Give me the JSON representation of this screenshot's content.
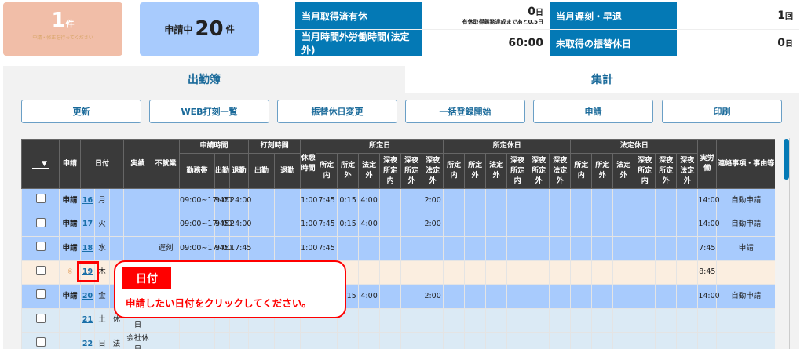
{
  "summary": {
    "todo_count": "1",
    "todo_unit": "件",
    "todo_note": "申請・修正を行ってください",
    "pending_prefix": "申請中",
    "pending_count": "20",
    "pending_unit": "件"
  },
  "info": [
    {
      "label": "当月取得済有休",
      "value": "0",
      "unit": "日",
      "note": "有休取得義務達成まであと0.5日"
    },
    {
      "label": "当月遅刻・早退",
      "value": "1",
      "unit": "回"
    },
    {
      "label": "当月時間外労働時間(法定外)",
      "value": "60:00",
      "unit": ""
    },
    {
      "label": "未取得の振替休日",
      "value": "0",
      "unit": "日"
    }
  ],
  "tabs": [
    {
      "label": "出勤簿",
      "active": true
    },
    {
      "label": "集計",
      "active": false
    }
  ],
  "buttons": [
    "更新",
    "WEB打刻一覧",
    "振替休日変更",
    "一括登録開始",
    "申請",
    "印刷"
  ],
  "table": {
    "select_label": "▼",
    "h": {
      "apply": "申請",
      "date": "日付",
      "result": "実績",
      "absence": "不就業",
      "req_time": "申請時間",
      "stamp_time": "打刻時間",
      "break": "休憩時間",
      "sched_day": "所定日",
      "sched_holiday": "所定休日",
      "legal_holiday": "法定休日",
      "actual": "実労働",
      "note": "連絡事項・事由等",
      "shift": "勤務帯",
      "in": "出勤",
      "out": "退勤",
      "stamp_in": "出勤",
      "stamp_out": "退勤"
    },
    "sub": [
      "所定内",
      "所定外",
      "法定外",
      "深夜所定内",
      "深夜所定外",
      "深夜法定外"
    ],
    "rows": [
      {
        "style": "blue",
        "cells": [
          "申請",
          "16",
          "月",
          "",
          "",
          "",
          "09:00~17:45",
          "9:00",
          "24:00",
          "",
          "",
          "1:00",
          "7:45",
          "0:15",
          "4:00",
          "",
          "",
          "2:00",
          "",
          "",
          "",
          "",
          "",
          "",
          "",
          "",
          "",
          "",
          "",
          "",
          "14:00",
          "自動申請"
        ]
      },
      {
        "style": "blue",
        "cells": [
          "申請",
          "17",
          "火",
          "",
          "",
          "",
          "09:00~17:45",
          "9:00",
          "24:00",
          "",
          "",
          "1:00",
          "7:45",
          "0:15",
          "4:00",
          "",
          "",
          "2:00",
          "",
          "",
          "",
          "",
          "",
          "",
          "",
          "",
          "",
          "",
          "",
          "",
          "14:00",
          "自動申請"
        ]
      },
      {
        "style": "blue",
        "cells": [
          "申請",
          "18",
          "水",
          "",
          "",
          "遅刻",
          "09:00~17:45",
          "9:00",
          "17:45",
          "",
          "",
          "1:00",
          "7:45",
          "",
          "",
          "",
          "",
          "",
          "",
          "",
          "",
          "",
          "",
          "",
          "",
          "",
          "",
          "",
          "",
          "",
          "7:45",
          "申請"
        ]
      },
      {
        "style": "peach",
        "cells": [
          "※",
          "19",
          "木",
          "",
          "",
          "",
          "",
          "",
          "",
          "",
          "",
          "",
          "",
          "",
          "",
          "",
          "",
          "",
          "",
          "",
          "",
          "",
          "",
          "",
          "",
          "",
          "",
          "",
          "",
          "",
          "8:45",
          ""
        ]
      },
      {
        "style": "blue",
        "cells": [
          "申請",
          "20",
          "金",
          "",
          "",
          "",
          "",
          "",
          "",
          "",
          "",
          "",
          "",
          "0:15",
          "4:00",
          "",
          "",
          "2:00",
          "",
          "",
          "",
          "",
          "",
          "",
          "",
          "",
          "",
          "",
          "",
          "",
          "14:00",
          "自動申請"
        ]
      },
      {
        "style": "light",
        "cells": [
          "",
          "21",
          "土",
          "休",
          "会社休日",
          "",
          "",
          "",
          "",
          "",
          "",
          "",
          "",
          "",
          "",
          "",
          "",
          "",
          "",
          "",
          "",
          "",
          "",
          "",
          "",
          "",
          "",
          "",
          "",
          "",
          "",
          ""
        ]
      },
      {
        "style": "light",
        "cells": [
          "",
          "22",
          "日",
          "法",
          "会社休日",
          "",
          "",
          "",
          "",
          "",
          "",
          "",
          "",
          "",
          "",
          "",
          "",
          "",
          "",
          "",
          "",
          "",
          "",
          "",
          "",
          "",
          "",
          "",
          "",
          "",
          "",
          ""
        ]
      }
    ]
  },
  "callout": {
    "title": "日付",
    "message": "申請したい日付をクリックしてください。"
  },
  "colors": {
    "accent": "#0479b5",
    "row_applied": "#a8cbfd",
    "row_pending": "#fbeee0",
    "row_holiday": "#dbeaf5",
    "highlight": "#ff0000"
  }
}
